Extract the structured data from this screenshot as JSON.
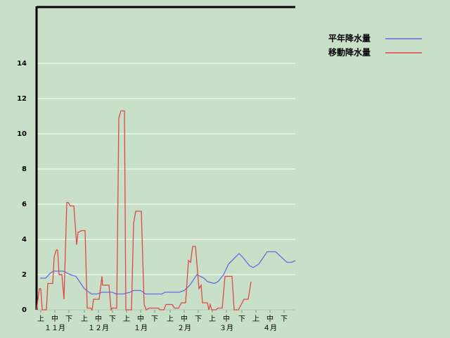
{
  "chart_data": {
    "type": "line",
    "xlim": [
      0,
      184
    ],
    "ylim": [
      0,
      17.2
    ],
    "yticks": [
      0,
      2,
      4,
      6,
      8,
      10,
      12,
      14
    ],
    "xticks": [
      {
        "value": 3,
        "label": "上"
      },
      {
        "value": 13,
        "label": "中"
      },
      {
        "value": 23,
        "label": "下"
      },
      {
        "value": 34,
        "label": "上"
      },
      {
        "value": 44,
        "label": "中"
      },
      {
        "value": 54,
        "label": "下"
      },
      {
        "value": 64,
        "label": "上"
      },
      {
        "value": 74,
        "label": "中"
      },
      {
        "value": 84,
        "label": "下"
      },
      {
        "value": 95,
        "label": "上"
      },
      {
        "value": 105,
        "label": "中"
      },
      {
        "value": 115,
        "label": "下"
      },
      {
        "value": 125,
        "label": "上"
      },
      {
        "value": 135,
        "label": "中"
      },
      {
        "value": 146,
        "label": "下"
      },
      {
        "value": 156,
        "label": "上"
      },
      {
        "value": 166,
        "label": "中"
      },
      {
        "value": 176,
        "label": "下"
      }
    ],
    "month_labels": [
      {
        "value": 13,
        "label": "１１月"
      },
      {
        "value": 44,
        "label": "１２月"
      },
      {
        "value": 74,
        "label": "１月"
      },
      {
        "value": 105,
        "label": "２月"
      },
      {
        "value": 135,
        "label": "３月"
      },
      {
        "value": 166,
        "label": "４月"
      }
    ],
    "grid": true,
    "series": [
      {
        "name": "平年降水量",
        "color": "#6070e0",
        "x": [
          2.5,
          6.5,
          10,
          12,
          19,
          24,
          28,
          34,
          39,
          43,
          46.5,
          54,
          56.5,
          61.5,
          66.5,
          69,
          74,
          77.5,
          89,
          91.5,
          101.5,
          105,
          109,
          114,
          119,
          121.5,
          126.5,
          129,
          133,
          136.5,
          141.5,
          144,
          146.5,
          151.5,
          154,
          158,
          164,
          170,
          174,
          178,
          181.5,
          184
        ],
        "values": [
          1.8,
          1.8,
          2.1,
          2.2,
          2.2,
          2.0,
          1.9,
          1.2,
          0.9,
          0.9,
          1.0,
          1.0,
          0.9,
          0.9,
          1.0,
          1.1,
          1.1,
          0.9,
          0.9,
          1.0,
          1.0,
          1.1,
          1.4,
          2.0,
          1.8,
          1.6,
          1.5,
          1.6,
          2.0,
          2.6,
          3.0,
          3.2,
          3.0,
          2.5,
          2.4,
          2.6,
          3.3,
          3.3,
          3.0,
          2.7,
          2.7,
          2.8
        ]
      },
      {
        "name": "移動降水量",
        "color": "#e04848",
        "x": [
          0,
          2,
          3,
          4,
          7,
          8,
          11.5,
          12.5,
          14,
          15,
          16,
          18,
          19.5,
          21.5,
          22.5,
          24,
          26.5,
          28.5,
          29.5,
          32,
          34.5,
          36,
          38.5,
          39.5,
          40.5,
          44.5,
          46.5,
          47,
          51.5,
          53,
          54,
          57,
          58.5,
          60,
          62.5,
          63.5,
          67.5,
          69,
          70.5,
          74.5,
          76.5,
          78,
          80,
          86.5,
          88,
          90.5,
          92,
          96.5,
          98,
          101,
          103,
          106,
          108,
          109.5,
          111,
          113,
          115.5,
          117,
          118,
          121.5,
          122.5,
          123.5,
          124.5,
          127.5,
          129,
          132,
          134,
          139,
          140.5,
          143.5,
          145.5,
          147.5,
          150.5,
          152.5
        ],
        "values": [
          0,
          1.2,
          1.2,
          0,
          0,
          1.5,
          1.5,
          3.0,
          3.4,
          3.4,
          2.0,
          2.0,
          0.6,
          6.1,
          6.1,
          5.9,
          5.9,
          3.7,
          4.4,
          4.5,
          4.5,
          0.1,
          0.1,
          0,
          0.6,
          0.6,
          1.9,
          1.4,
          1.4,
          0,
          0.1,
          0.1,
          10.9,
          11.3,
          11.3,
          0,
          0,
          4.9,
          5.6,
          5.6,
          0.3,
          0,
          0.1,
          0.1,
          0,
          0,
          0.3,
          0.3,
          0.1,
          0.1,
          0.4,
          0.4,
          2.8,
          2.7,
          3.6,
          3.6,
          1.2,
          1.4,
          0.4,
          0.4,
          0,
          0.3,
          0,
          0,
          0.1,
          0.1,
          1.9,
          1.9,
          0,
          0,
          0.3,
          0.6,
          0.6,
          1.6
        ]
      }
    ]
  }
}
